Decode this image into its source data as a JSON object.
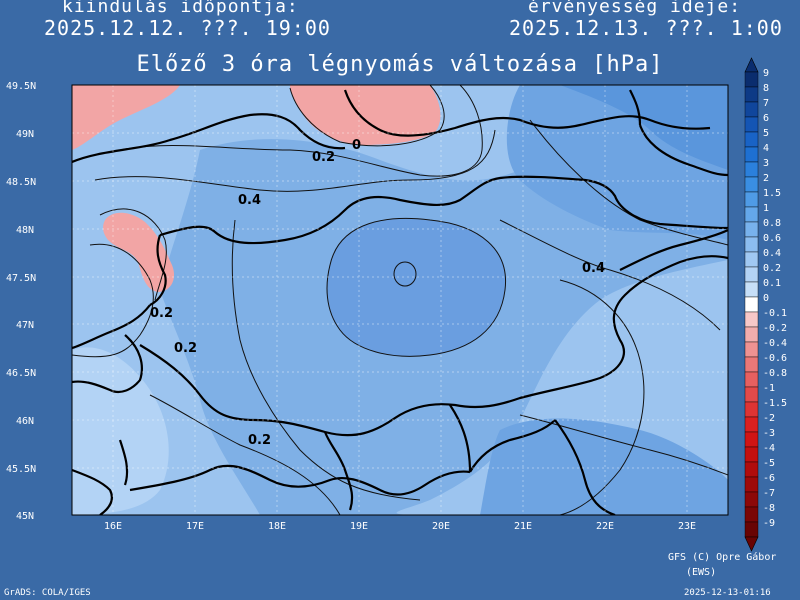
{
  "header": {
    "start_label": "kiindulás időpontja:",
    "start_value": "2025.12.12. ???. 19:00",
    "valid_label": "érvényesség ideje:",
    "valid_value": "2025.12.13. ???. 1:00"
  },
  "map": {
    "title": "Előző 3 óra légnyomás változása [hPa]",
    "lat_labels": [
      "49.5N",
      "49N",
      "48.5N",
      "48N",
      "47.5N",
      "47N",
      "46.5N",
      "46N",
      "45.5N",
      "45N"
    ],
    "lon_labels": [
      "16E",
      "17E",
      "18E",
      "19E",
      "20E",
      "21E",
      "22E",
      "23E"
    ],
    "contour_labels": [
      "0",
      "0.2",
      "0.4",
      "0.4",
      "0.2",
      "0.2",
      "0.2"
    ]
  },
  "legend": {
    "levels": [
      "9",
      "8",
      "7",
      "6",
      "5",
      "4",
      "3",
      "2",
      "1.5",
      "1",
      "0.8",
      "0.6",
      "0.4",
      "0.2",
      "0.1",
      "0",
      "-0.1",
      "-0.2",
      "-0.4",
      "-0.6",
      "-0.8",
      "-1",
      "-1.5",
      "-2",
      "-3",
      "-4",
      "-5",
      "-6",
      "-7",
      "-8",
      "-9"
    ],
    "colors": [
      "#0a2d6e",
      "#0d3a86",
      "#10469c",
      "#1455b4",
      "#1963c6",
      "#1e70d2",
      "#2b80dc",
      "#3a8ee2",
      "#4f9be6",
      "#64a7ea",
      "#78b2ed",
      "#8cbdf0",
      "#a0c8f2",
      "#b3d3f5",
      "#c6dff8",
      "#ffffff",
      "#f7c8c8",
      "#f2adad",
      "#ee9292",
      "#ea7878",
      "#e66060",
      "#e24a4a",
      "#de3434",
      "#da2020",
      "#d01414",
      "#c21010",
      "#b00c0c",
      "#9e0a0a",
      "#8c0808",
      "#7a0606",
      "#680404"
    ]
  },
  "footer": {
    "credit_line1": "GFS (C) Opre Gábor",
    "credit_line2": "(EWS)",
    "grads": "GrADS: COLA/IGES",
    "timestamp": "2025-12-13-01:16"
  }
}
